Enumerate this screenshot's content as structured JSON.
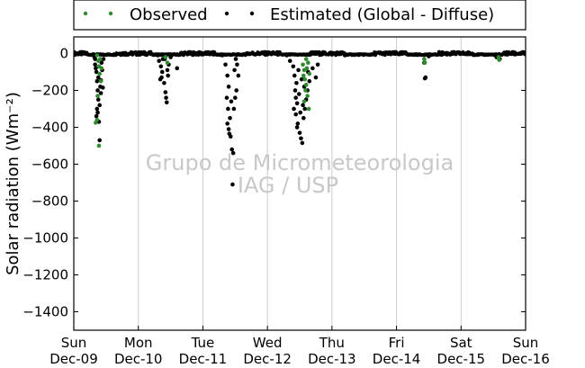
{
  "chart_data": {
    "type": "scatter",
    "title": "",
    "xlabel": "",
    "ylabel": "Solar radiation (Wm⁻²)",
    "ylim": [
      -1500,
      90
    ],
    "xlim": [
      0,
      7
    ],
    "yticks": [
      0,
      -200,
      -400,
      -600,
      -800,
      -1000,
      -1200,
      -1400
    ],
    "xticks": [
      {
        "x": 0,
        "day": "Sun",
        "date": "Dec-09"
      },
      {
        "x": 1,
        "day": "Mon",
        "date": "Dec-10"
      },
      {
        "x": 2,
        "day": "Tue",
        "date": "Dec-11"
      },
      {
        "x": 3,
        "day": "Wed",
        "date": "Dec-12"
      },
      {
        "x": 4,
        "day": "Thu",
        "date": "Dec-13"
      },
      {
        "x": 5,
        "day": "Fri",
        "date": "Dec-14"
      },
      {
        "x": 6,
        "day": "Sat",
        "date": "Dec-15"
      },
      {
        "x": 7,
        "day": "Sun",
        "date": "Dec-16"
      }
    ],
    "grid": "vertical",
    "legend": "top-center",
    "watermark": [
      "Grupo de Micrometeorologia",
      "IAG / USP"
    ],
    "series": [
      {
        "name": "Observed",
        "color": "#2e8b2e",
        "points": [
          [
            0.36,
            -10
          ],
          [
            0.38,
            -40
          ],
          [
            0.39,
            -70
          ],
          [
            0.4,
            -110
          ],
          [
            0.42,
            -150
          ],
          [
            0.37,
            -230
          ],
          [
            0.34,
            -375
          ],
          [
            0.36,
            -360
          ],
          [
            0.39,
            -500
          ],
          [
            0.41,
            -30
          ],
          [
            0.43,
            -80
          ],
          [
            1.42,
            -20
          ],
          [
            1.45,
            -50
          ],
          [
            3.55,
            -60
          ],
          [
            3.57,
            -90
          ],
          [
            3.58,
            -140
          ],
          [
            3.6,
            -170
          ],
          [
            3.62,
            -230
          ],
          [
            3.64,
            -300
          ],
          [
            3.56,
            -120
          ],
          [
            3.59,
            -200
          ],
          [
            3.61,
            -80
          ],
          [
            3.63,
            -50
          ],
          [
            3.65,
            -110
          ],
          [
            3.57,
            -260
          ],
          [
            3.6,
            -30
          ],
          [
            5.43,
            -30
          ],
          [
            5.44,
            -50
          ],
          [
            6.58,
            -20
          ],
          [
            6.59,
            -35
          ]
        ]
      },
      {
        "name": "Estimated (Global - Diffuse)",
        "color": "#000000",
        "points": [
          [
            0.3,
            -5
          ],
          [
            0.32,
            -20
          ],
          [
            0.33,
            -60
          ],
          [
            0.35,
            -100
          ],
          [
            0.36,
            -150
          ],
          [
            0.37,
            -200
          ],
          [
            0.38,
            -250
          ],
          [
            0.36,
            -300
          ],
          [
            0.35,
            -340
          ],
          [
            0.39,
            -370
          ],
          [
            0.4,
            -470
          ],
          [
            0.38,
            -130
          ],
          [
            0.41,
            -180
          ],
          [
            0.42,
            -215
          ],
          [
            0.43,
            -50
          ],
          [
            0.44,
            -90
          ],
          [
            0.4,
            -280
          ],
          [
            0.37,
            -320
          ],
          [
            0.45,
            -185
          ],
          [
            0.34,
            -80
          ],
          [
            0.33,
            -30
          ],
          [
            0.42,
            -145
          ],
          [
            0.46,
            -30
          ],
          [
            1.3,
            -10
          ],
          [
            1.32,
            -40
          ],
          [
            1.35,
            -70
          ],
          [
            1.37,
            -100
          ],
          [
            1.34,
            -140
          ],
          [
            1.4,
            -160
          ],
          [
            1.42,
            -210
          ],
          [
            1.43,
            -240
          ],
          [
            1.44,
            -265
          ],
          [
            1.38,
            -30
          ],
          [
            1.45,
            -90
          ],
          [
            1.47,
            -60
          ],
          [
            1.5,
            -20
          ],
          [
            1.6,
            -80
          ],
          [
            1.36,
            -130
          ],
          [
            1.41,
            -30
          ],
          [
            1.46,
            -120
          ],
          [
            2.3,
            -10
          ],
          [
            2.35,
            -60
          ],
          [
            2.38,
            -120
          ],
          [
            2.4,
            -180
          ],
          [
            2.37,
            -240
          ],
          [
            2.39,
            -300
          ],
          [
            2.38,
            -380
          ],
          [
            2.4,
            -410
          ],
          [
            2.41,
            -435
          ],
          [
            2.43,
            -450
          ],
          [
            2.45,
            -520
          ],
          [
            2.47,
            -540
          ],
          [
            2.48,
            -300
          ],
          [
            2.5,
            -240
          ],
          [
            2.52,
            -200
          ],
          [
            2.55,
            -120
          ],
          [
            2.46,
            -710
          ],
          [
            2.49,
            -90
          ],
          [
            2.51,
            -30
          ],
          [
            2.44,
            -260
          ],
          [
            2.42,
            -350
          ],
          [
            2.53,
            -60
          ],
          [
            3.3,
            -10
          ],
          [
            3.35,
            -40
          ],
          [
            3.4,
            -70
          ],
          [
            3.42,
            -120
          ],
          [
            3.45,
            -160
          ],
          [
            3.43,
            -200
          ],
          [
            3.44,
            -240
          ],
          [
            3.46,
            -270
          ],
          [
            3.41,
            -300
          ],
          [
            3.44,
            -330
          ],
          [
            3.47,
            -380
          ],
          [
            3.5,
            -430
          ],
          [
            3.52,
            -460
          ],
          [
            3.54,
            -485
          ],
          [
            3.56,
            -350
          ],
          [
            3.58,
            -300
          ],
          [
            3.6,
            -250
          ],
          [
            3.62,
            -200
          ],
          [
            3.65,
            -150
          ],
          [
            3.7,
            -80
          ],
          [
            3.75,
            -130
          ],
          [
            3.78,
            -60
          ],
          [
            3.48,
            -90
          ],
          [
            3.53,
            -140
          ],
          [
            3.57,
            -180
          ],
          [
            3.49,
            -220
          ],
          [
            3.55,
            -280
          ],
          [
            3.51,
            -320
          ],
          [
            3.46,
            -400
          ],
          [
            3.63,
            -100
          ],
          [
            4.2,
            -10
          ],
          [
            4.5,
            -5
          ],
          [
            5.43,
            -50
          ],
          [
            5.44,
            -135
          ],
          [
            5.45,
            -130
          ],
          [
            5.5,
            -15
          ],
          [
            6.55,
            -20
          ],
          [
            6.6,
            -30
          ]
        ]
      }
    ]
  }
}
